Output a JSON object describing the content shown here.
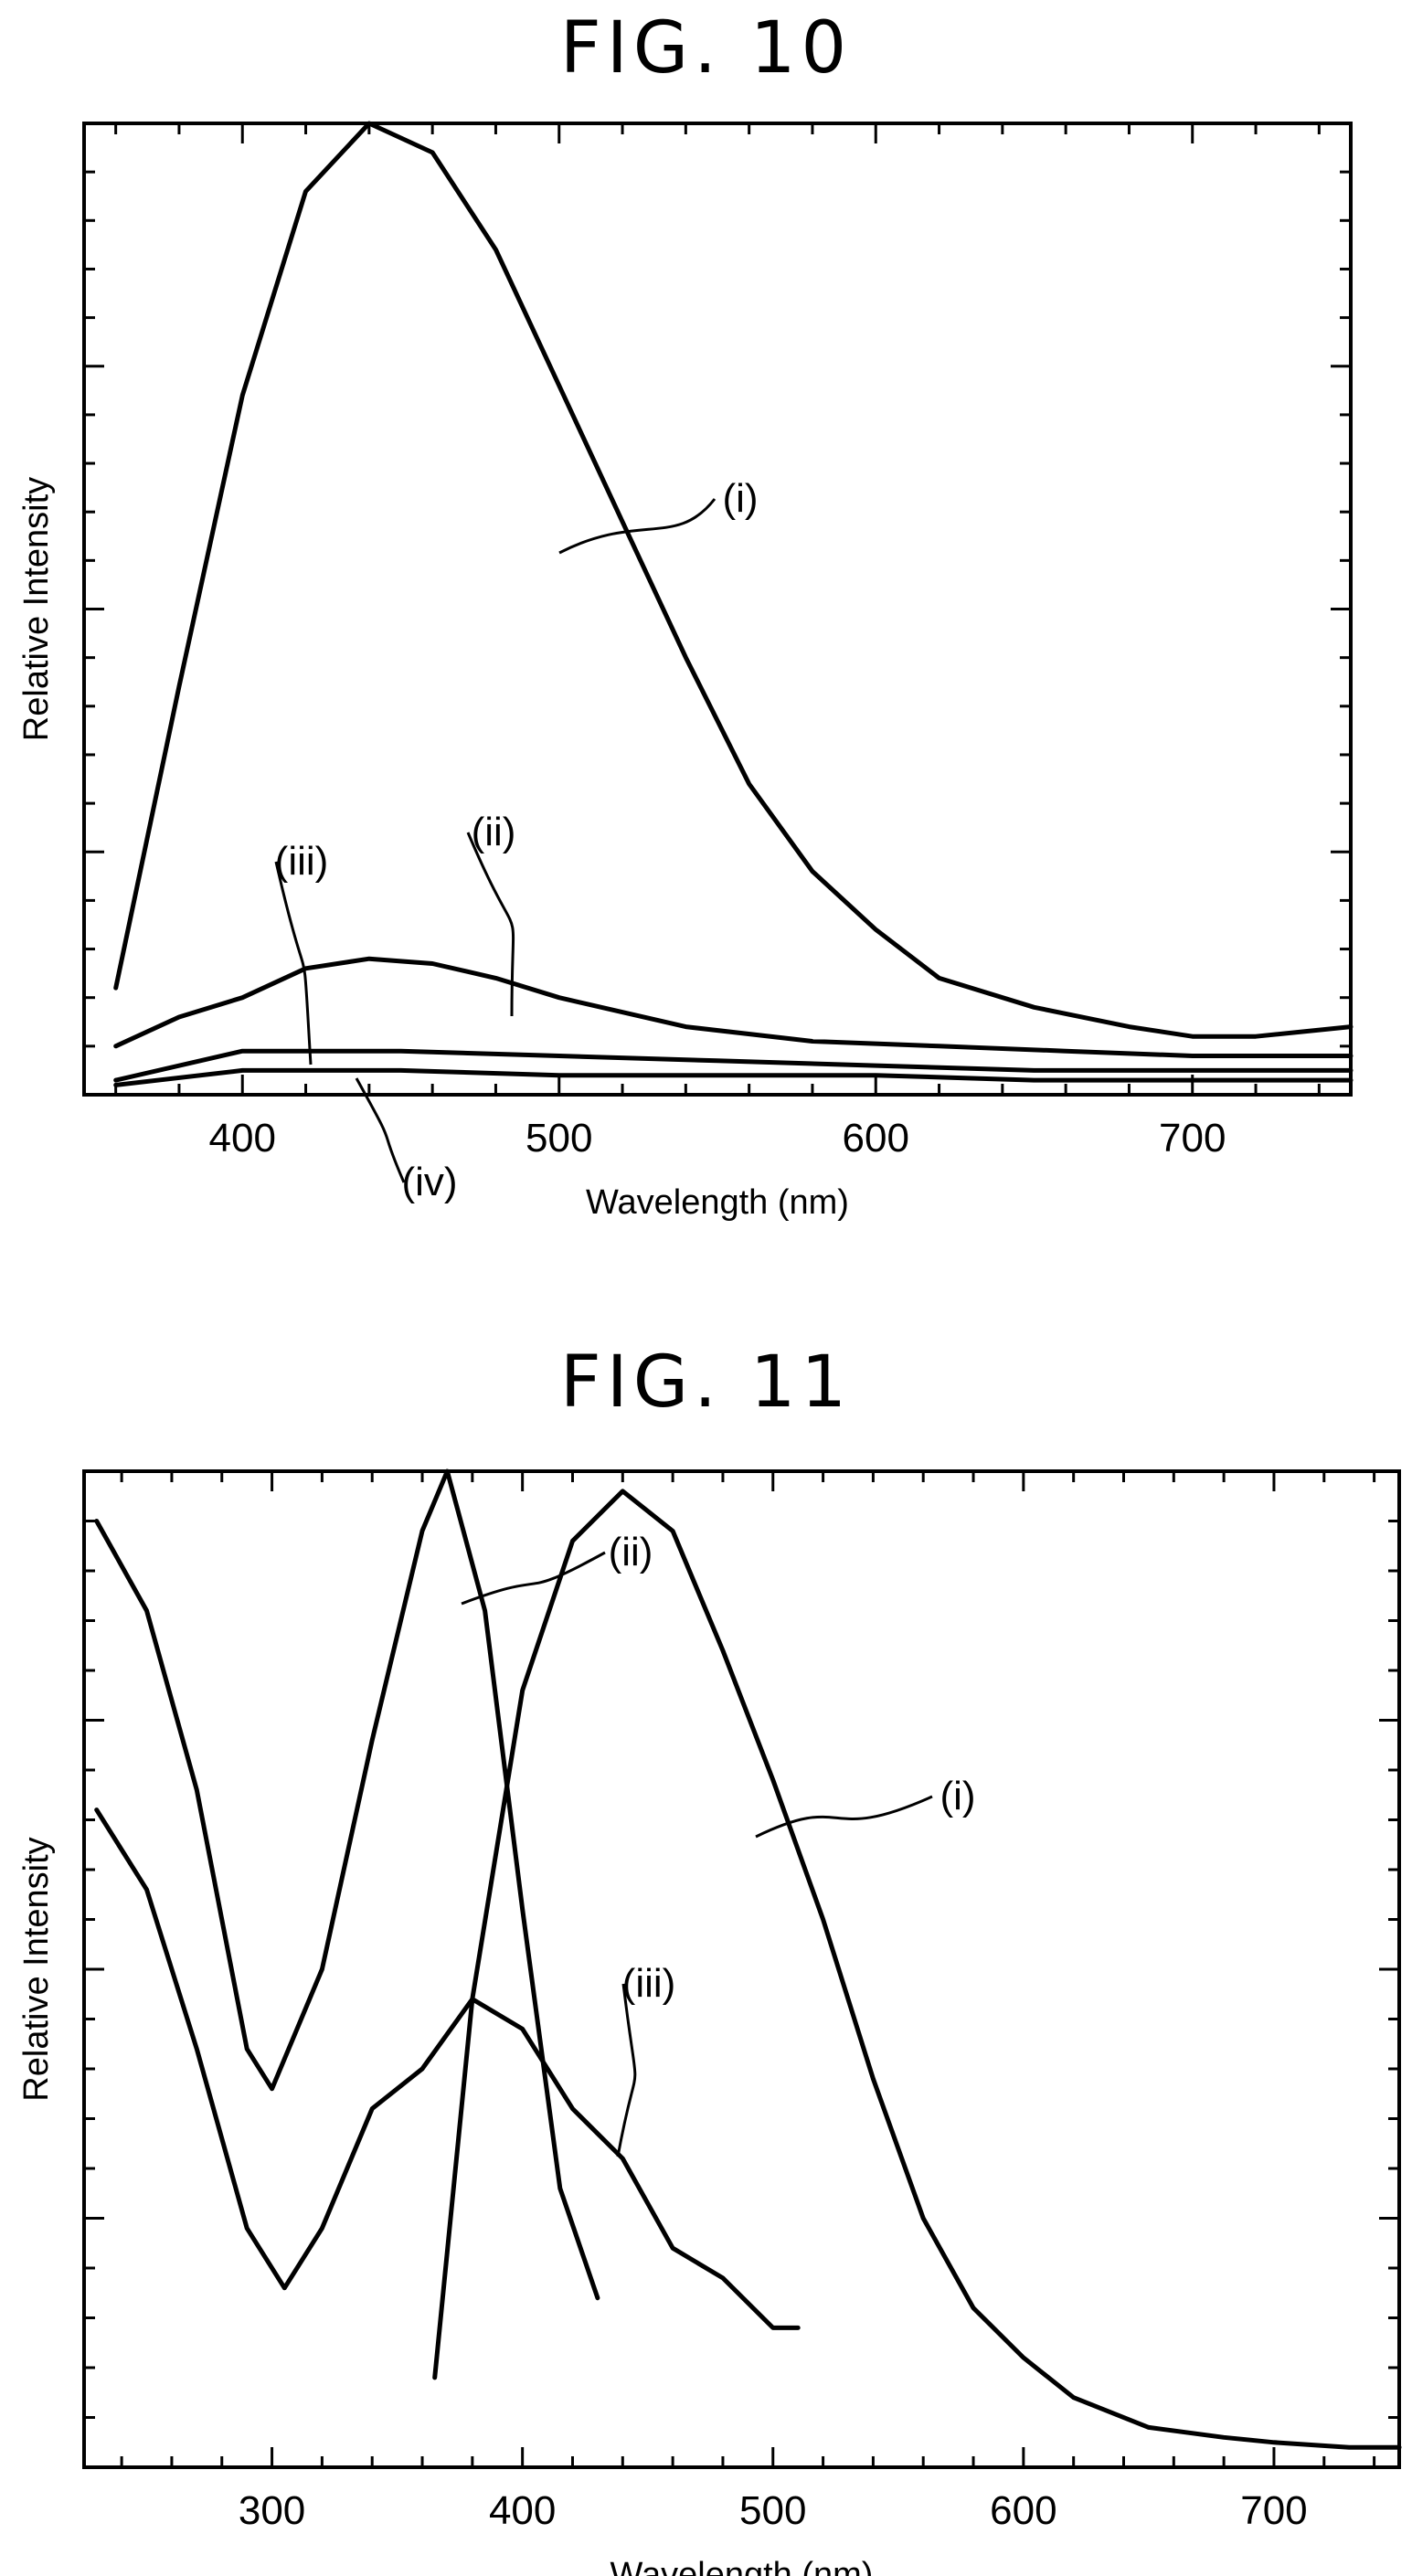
{
  "figures": {
    "fig10_title": "FIG. 10",
    "fig11_title": "FIG. 11"
  },
  "chart_data": [
    {
      "type": "line",
      "title": "FIG. 10",
      "xlabel": "Wavelength (nm)",
      "ylabel": "Relative Intensity",
      "xlim": [
        350,
        750
      ],
      "ylim": [
        0,
        1
      ],
      "xticks": [
        400,
        500,
        600,
        700
      ],
      "yticks_labeled": false,
      "grid": false,
      "legend": "none (inline callout labels)",
      "series": [
        {
          "name": "(i)",
          "x": [
            360,
            380,
            400,
            420,
            440,
            460,
            480,
            500,
            520,
            540,
            560,
            580,
            600,
            620,
            650,
            680,
            700,
            720,
            750
          ],
          "y": [
            0.11,
            0.42,
            0.72,
            0.93,
            1.0,
            0.97,
            0.87,
            0.73,
            0.59,
            0.45,
            0.32,
            0.23,
            0.17,
            0.12,
            0.09,
            0.07,
            0.06,
            0.06,
            0.07
          ]
        },
        {
          "name": "(ii)",
          "x": [
            360,
            380,
            400,
            420,
            440,
            460,
            480,
            500,
            540,
            580,
            620,
            660,
            700,
            750
          ],
          "y": [
            0.05,
            0.08,
            0.1,
            0.13,
            0.14,
            0.135,
            0.12,
            0.1,
            0.07,
            0.055,
            0.05,
            0.045,
            0.04,
            0.04
          ]
        },
        {
          "name": "(iii)",
          "x": [
            360,
            400,
            450,
            500,
            550,
            600,
            650,
            700,
            750
          ],
          "y": [
            0.015,
            0.045,
            0.045,
            0.04,
            0.035,
            0.03,
            0.025,
            0.025,
            0.025
          ]
        },
        {
          "name": "(iv)",
          "x": [
            360,
            400,
            450,
            500,
            550,
            600,
            650,
            700,
            750
          ],
          "y": [
            0.01,
            0.025,
            0.025,
            0.02,
            0.02,
            0.02,
            0.015,
            0.015,
            0.015
          ]
        }
      ],
      "annotations": [
        "(i)",
        "(ii)",
        "(iii)",
        "(iv)"
      ]
    },
    {
      "type": "line",
      "title": "FIG. 11",
      "xlabel": "Wavelength (nm)",
      "ylabel": "Relative Intensity",
      "xlim": [
        225,
        750
      ],
      "ylim": [
        0,
        1
      ],
      "xticks": [
        300,
        400,
        500,
        600,
        700
      ],
      "yticks_labeled": false,
      "grid": false,
      "legend": "none (inline callout labels)",
      "series": [
        {
          "name": "(i)",
          "x": [
            365,
            380,
            400,
            420,
            440,
            460,
            480,
            500,
            520,
            540,
            560,
            580,
            600,
            620,
            650,
            680,
            700,
            730,
            750
          ],
          "y": [
            0.09,
            0.47,
            0.78,
            0.93,
            0.98,
            0.94,
            0.82,
            0.69,
            0.55,
            0.39,
            0.25,
            0.16,
            0.11,
            0.07,
            0.04,
            0.03,
            0.025,
            0.02,
            0.02
          ]
        },
        {
          "name": "(ii)",
          "x": [
            230,
            250,
            270,
            290,
            300,
            320,
            340,
            360,
            370,
            385,
            400,
            415,
            430
          ],
          "y": [
            0.95,
            0.86,
            0.68,
            0.42,
            0.38,
            0.5,
            0.73,
            0.94,
            1.0,
            0.86,
            0.56,
            0.28,
            0.17
          ]
        },
        {
          "name": "(iii)",
          "x": [
            230,
            250,
            270,
            290,
            305,
            320,
            340,
            360,
            380,
            400,
            420,
            440,
            460,
            480,
            500,
            510
          ],
          "y": [
            0.66,
            0.58,
            0.42,
            0.24,
            0.18,
            0.24,
            0.36,
            0.4,
            0.47,
            0.44,
            0.36,
            0.31,
            0.22,
            0.19,
            0.14,
            0.14
          ]
        }
      ],
      "annotations": [
        "(i)",
        "(ii)",
        "(iii)"
      ]
    }
  ]
}
